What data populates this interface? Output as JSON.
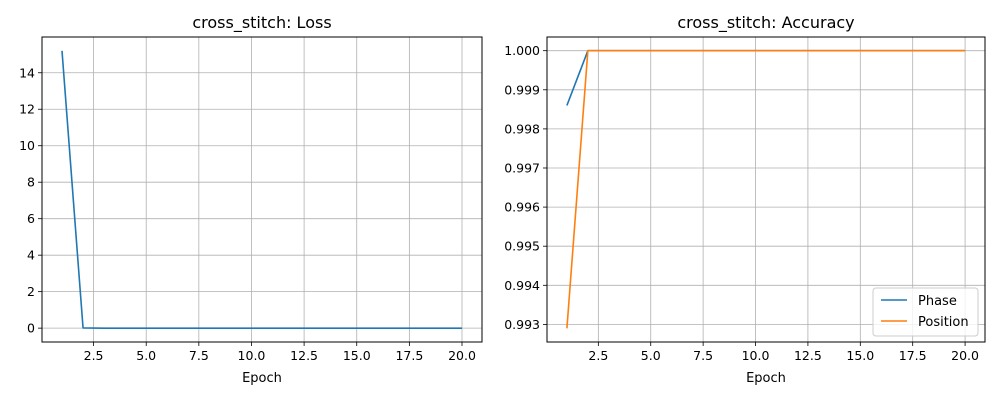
{
  "chart_data": [
    {
      "type": "line",
      "title": "cross_stitch: Loss",
      "xlabel": "Epoch",
      "ylabel": "",
      "xlim": [
        0.05,
        20.95
      ],
      "ylim": [
        -0.76,
        15.96
      ],
      "xticks": [
        2.5,
        5.0,
        7.5,
        10.0,
        12.5,
        15.0,
        17.5,
        20.0
      ],
      "xtick_labels": [
        "2.5",
        "5.0",
        "7.5",
        "10.0",
        "12.5",
        "15.0",
        "17.5",
        "20.0"
      ],
      "yticks": [
        0,
        2,
        4,
        6,
        8,
        10,
        12,
        14
      ],
      "ytick_labels": [
        "0",
        "2",
        "4",
        "6",
        "8",
        "10",
        "12",
        "14"
      ],
      "grid": true,
      "legend": null,
      "x": [
        1,
        2,
        3,
        4,
        5,
        6,
        7,
        8,
        9,
        10,
        11,
        12,
        13,
        14,
        15,
        16,
        17,
        18,
        19,
        20
      ],
      "series": [
        {
          "color": "#1f77b4",
          "values": [
            15.2,
            0.01,
            0,
            0,
            0,
            0,
            0,
            0,
            0,
            0,
            0,
            0,
            0,
            0,
            0,
            0,
            0,
            0,
            0,
            0
          ]
        }
      ]
    },
    {
      "type": "line",
      "title": "cross_stitch: Accuracy",
      "xlabel": "Epoch",
      "ylabel": "",
      "xlim": [
        0.05,
        20.95
      ],
      "ylim": [
        0.99255,
        1.00035
      ],
      "xticks": [
        2.5,
        5.0,
        7.5,
        10.0,
        12.5,
        15.0,
        17.5,
        20.0
      ],
      "xtick_labels": [
        "2.5",
        "5.0",
        "7.5",
        "10.0",
        "12.5",
        "15.0",
        "17.5",
        "20.0"
      ],
      "yticks": [
        0.993,
        0.994,
        0.995,
        0.996,
        0.997,
        0.998,
        0.999,
        1.0
      ],
      "ytick_labels": [
        "0.993",
        "0.994",
        "0.995",
        "0.996",
        "0.997",
        "0.998",
        "0.999",
        "1.000"
      ],
      "grid": true,
      "legend": "bottom-right",
      "x": [
        1,
        2,
        3,
        4,
        5,
        6,
        7,
        8,
        9,
        10,
        11,
        12,
        13,
        14,
        15,
        16,
        17,
        18,
        19,
        20
      ],
      "series": [
        {
          "name": "Phase",
          "color": "#1f77b4",
          "values": [
            0.9986,
            1,
            1,
            1,
            1,
            1,
            1,
            1,
            1,
            1,
            1,
            1,
            1,
            1,
            1,
            1,
            1,
            1,
            1,
            1
          ]
        },
        {
          "name": "Position",
          "color": "#ff7f0e",
          "values": [
            0.9929,
            1,
            1,
            1,
            1,
            1,
            1,
            1,
            1,
            1,
            1,
            1,
            1,
            1,
            1,
            1,
            1,
            1,
            1,
            1
          ]
        }
      ]
    }
  ]
}
